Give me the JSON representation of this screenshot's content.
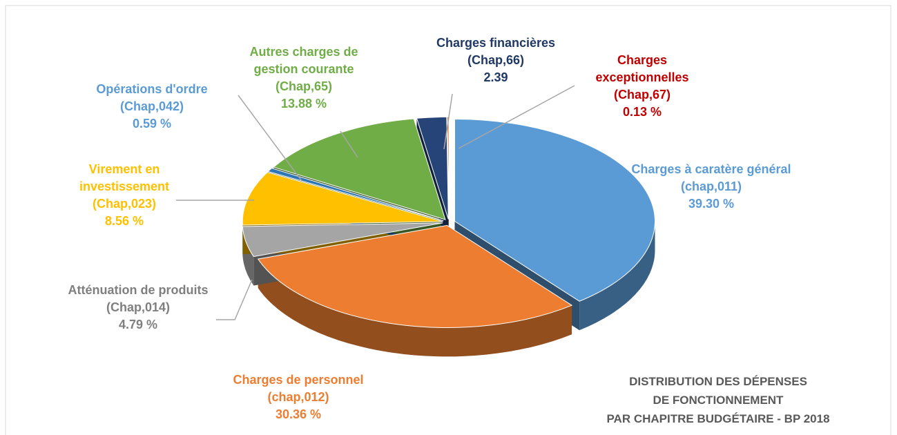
{
  "chart_data": {
    "type": "pie",
    "title": [
      "DISTRIBUTION DES DÉPENSES",
      "DE FONCTIONNEMENT",
      "PAR CHAPITRE BUDGÉTAIRE - BP 2018"
    ],
    "categories": [
      "Charges à caratère général (chap,011)",
      "Charges de personnel (chap,012)",
      "Atténuation de produits (Chap,014)",
      "Virement en investissement (Chap,023)",
      "Opérations d'ordre (Chap,042)",
      "Autres charges de gestion courante (Chap,65)",
      "Charges financières (Chap,66)",
      "Charges exceptionnelles (Chap,67)"
    ],
    "values": [
      39.3,
      30.36,
      4.79,
      8.56,
      0.59,
      13.88,
      2.39,
      0.13
    ],
    "value_labels": [
      "39.30 %",
      "30.36 %",
      "4.79 %",
      "8.56 %",
      "0.59 %",
      "13.88 %",
      "2.39",
      "0.13 %"
    ],
    "colors": [
      "#5b9bd5",
      "#ed7d31",
      "#a5a5a5",
      "#ffc000",
      "#2e75b6",
      "#70ad47",
      "#264478",
      "#c55a11"
    ],
    "label_colors": [
      "#5b9bd5",
      "#ed7d31",
      "#7f7f7f",
      "#ffc000",
      "#5b9bd5",
      "#70ad47",
      "#1f3864",
      "#c00000"
    ]
  }
}
